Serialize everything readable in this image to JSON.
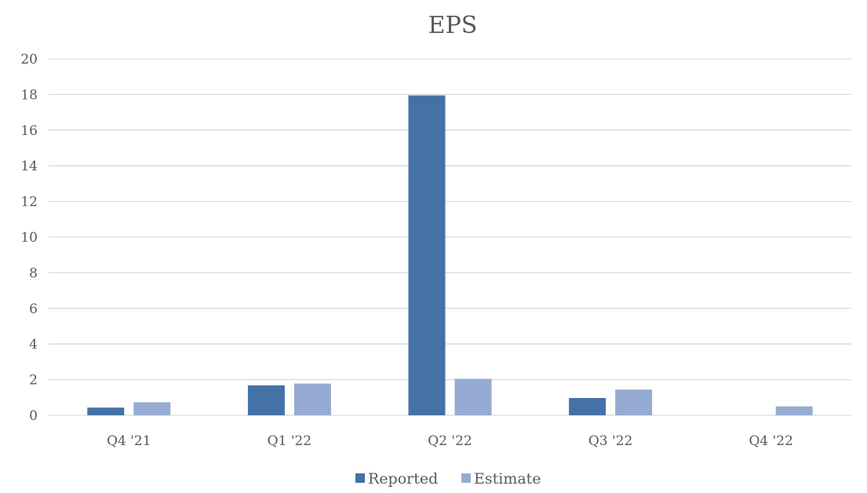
{
  "chart_data": {
    "type": "bar",
    "title": "EPS",
    "xlabel": "",
    "ylabel": "",
    "categories": [
      "Q4 '21",
      "Q1 '22",
      "Q2 '22",
      "Q3 '22",
      "Q4 '22"
    ],
    "series": [
      {
        "name": "Reported",
        "values": [
          0.43,
          1.68,
          17.95,
          0.97,
          null
        ],
        "color": "#4472a6"
      },
      {
        "name": "Estimate",
        "values": [
          0.73,
          1.78,
          2.05,
          1.44,
          0.5
        ],
        "color": "#96abd1"
      }
    ],
    "ylim": [
      0,
      20
    ],
    "yticks": [
      0,
      2,
      4,
      6,
      8,
      10,
      12,
      14,
      16,
      18,
      20
    ],
    "grid": true,
    "legend_position": "bottom"
  }
}
